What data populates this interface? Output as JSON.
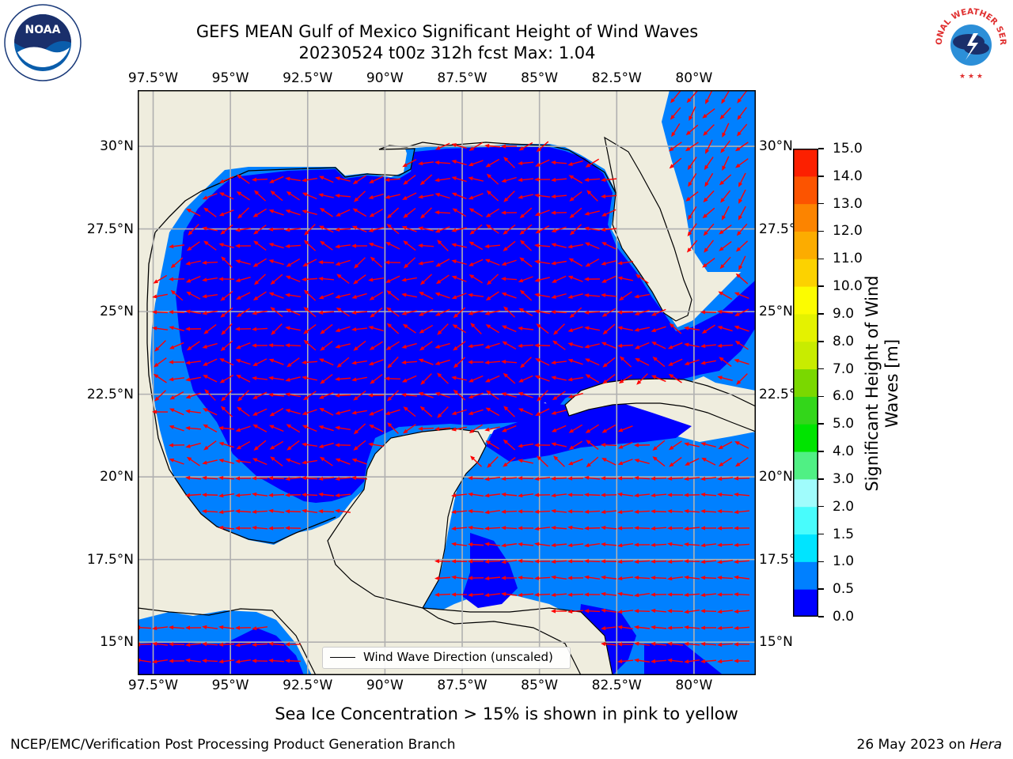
{
  "title": {
    "line1": "GEFS MEAN Gulf of Mexico Significant Height of Wind Waves",
    "line2": "20230524 t00z 312h fcst   Max: 1.04"
  },
  "map": {
    "lon_ticks": [
      "97.5°W",
      "95°W",
      "92.5°W",
      "90°W",
      "87.5°W",
      "85°W",
      "82.5°W",
      "80°W"
    ],
    "lat_ticks": [
      "30°N",
      "27.5°N",
      "25°N",
      "22.5°N",
      "20°N",
      "17.5°N",
      "15°N"
    ],
    "lon_range": [
      -98,
      -78
    ],
    "lat_range": [
      14,
      31.7
    ],
    "grid": true,
    "land_color": "#efedde",
    "ocean_low_color": "#0000ff",
    "ocean_mid_color": "#0080ff",
    "arrow_color": "#ff0000",
    "legend": {
      "label": "Wind Wave Direction (unscaled)",
      "placement": "bottom-center"
    }
  },
  "colorbar": {
    "label": "Significant Height of Wind Waves [m]",
    "label_line1": "Significant Height of Wind",
    "label_line2": "Waves [m]",
    "ticks": [
      "0.0",
      "0.5",
      "1.0",
      "1.5",
      "2.0",
      "3.0",
      "4.0",
      "5.0",
      "6.0",
      "7.0",
      "8.0",
      "9.0",
      "10.0",
      "11.0",
      "12.0",
      "13.0",
      "14.0",
      "15.0"
    ],
    "colors": [
      "#0000ff",
      "#0080ff",
      "#00e4ff",
      "#48fcfc",
      "#a0fcfc",
      "#50f084",
      "#00e400",
      "#33d61a",
      "#7ad800",
      "#c8ec00",
      "#e4f200",
      "#fcfc00",
      "#fcd200",
      "#fcac00",
      "#fc8400",
      "#fc5400",
      "#fc2000"
    ]
  },
  "subtitle": "Sea Ice Concentration > 15% is shown in pink to yellow",
  "footer": {
    "left": "NCEP/EMC/Verification Post Processing Product Generation Branch",
    "right_prefix": "26 May 2023 on ",
    "right_host": "Hera"
  },
  "logos": {
    "noaa": "NOAA",
    "nws": "NATIONAL WEATHER SERVICE"
  }
}
